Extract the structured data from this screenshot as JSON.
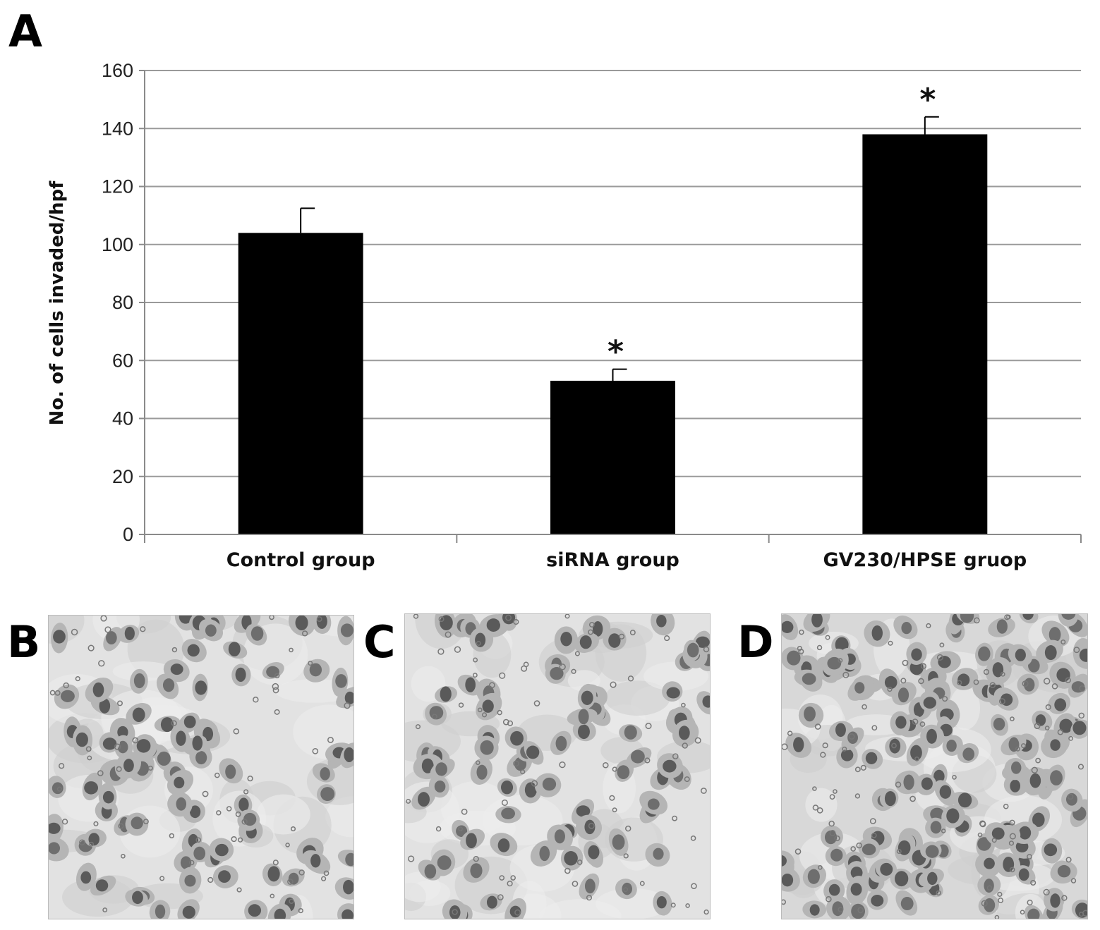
{
  "panels": {
    "a": "A",
    "b": "B",
    "c": "C",
    "d": "D"
  },
  "chart_data": {
    "type": "bar",
    "title": "",
    "xlabel": "",
    "ylabel": "No. of cells invaded/hpf",
    "categories": [
      "Control group",
      "siRNA group",
      "GV230/HPSE gruop"
    ],
    "values": [
      104,
      53,
      138
    ],
    "errors": [
      8.5,
      4,
      6
    ],
    "significance": [
      "",
      "*",
      "*"
    ],
    "ylim": [
      0,
      160
    ],
    "yticks": [
      "0",
      "20",
      "40",
      "60",
      "80",
      "100",
      "120",
      "140",
      "160"
    ],
    "grid": true,
    "bar_color": "#000000"
  }
}
